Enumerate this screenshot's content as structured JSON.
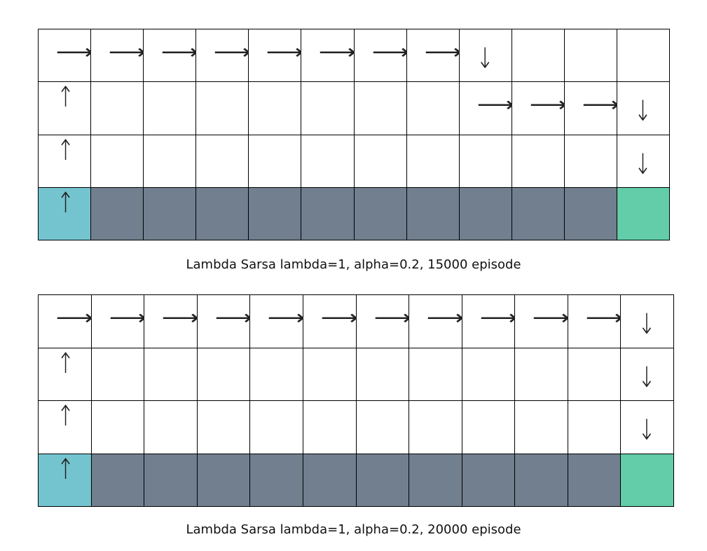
{
  "arrow_glyphs": {
    "R": "⟶",
    "D": "↓",
    "U": "↑",
    "": ""
  },
  "colors": {
    "start": "#74c4d0",
    "cliff": "#717f8e",
    "goal": "#62cda8",
    "empty": "#ffffff"
  },
  "panels": [
    {
      "caption": "Lambda Sarsa lambda=1, alpha=0.2, 15000 episode",
      "rows": [
        [
          "R",
          "R",
          "R",
          "R",
          "R",
          "R",
          "R",
          "R",
          "D",
          "",
          "",
          ""
        ],
        [
          "U",
          "",
          "",
          "",
          "",
          "",
          "",
          "",
          "R",
          "R",
          "R",
          "D"
        ],
        [
          "U",
          "",
          "",
          "",
          "",
          "",
          "",
          "",
          "",
          "",
          "",
          "D"
        ],
        [
          "U",
          "",
          "",
          "",
          "",
          "",
          "",
          "",
          "",
          "",
          "",
          ""
        ]
      ],
      "cell_types": [
        [
          "empty",
          "empty",
          "empty",
          "empty",
          "empty",
          "empty",
          "empty",
          "empty",
          "empty",
          "empty",
          "empty",
          "empty"
        ],
        [
          "empty",
          "empty",
          "empty",
          "empty",
          "empty",
          "empty",
          "empty",
          "empty",
          "empty",
          "empty",
          "empty",
          "empty"
        ],
        [
          "empty",
          "empty",
          "empty",
          "empty",
          "empty",
          "empty",
          "empty",
          "empty",
          "empty",
          "empty",
          "empty",
          "empty"
        ],
        [
          "start",
          "cliff",
          "cliff",
          "cliff",
          "cliff",
          "cliff",
          "cliff",
          "cliff",
          "cliff",
          "cliff",
          "cliff",
          "goal"
        ]
      ]
    },
    {
      "caption": "Lambda Sarsa lambda=1, alpha=0.2, 20000 episode",
      "rows": [
        [
          "R",
          "R",
          "R",
          "R",
          "R",
          "R",
          "R",
          "R",
          "R",
          "R",
          "R",
          "D"
        ],
        [
          "U",
          "",
          "",
          "",
          "",
          "",
          "",
          "",
          "",
          "",
          "",
          "D"
        ],
        [
          "U",
          "",
          "",
          "",
          "",
          "",
          "",
          "",
          "",
          "",
          "",
          "D"
        ],
        [
          "U",
          "",
          "",
          "",
          "",
          "",
          "",
          "",
          "",
          "",
          "",
          ""
        ]
      ],
      "cell_types": [
        [
          "empty",
          "empty",
          "empty",
          "empty",
          "empty",
          "empty",
          "empty",
          "empty",
          "empty",
          "empty",
          "empty",
          "empty"
        ],
        [
          "empty",
          "empty",
          "empty",
          "empty",
          "empty",
          "empty",
          "empty",
          "empty",
          "empty",
          "empty",
          "empty",
          "empty"
        ],
        [
          "empty",
          "empty",
          "empty",
          "empty",
          "empty",
          "empty",
          "empty",
          "empty",
          "empty",
          "empty",
          "empty",
          "empty"
        ],
        [
          "start",
          "cliff",
          "cliff",
          "cliff",
          "cliff",
          "cliff",
          "cliff",
          "cliff",
          "cliff",
          "cliff",
          "cliff",
          "goal"
        ]
      ]
    }
  ]
}
